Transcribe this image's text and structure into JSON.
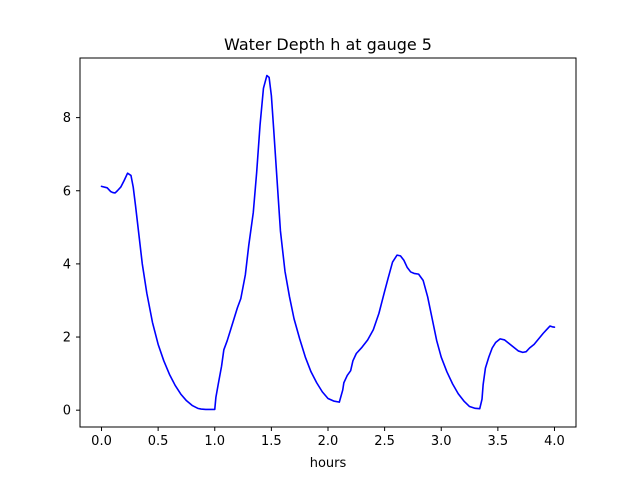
{
  "chart_data": {
    "type": "line",
    "title": "Water Depth h at gauge 5",
    "xlabel": "hours",
    "ylabel": "",
    "xlim": [
      -0.19,
      4.19
    ],
    "ylim": [
      -0.46,
      9.63
    ],
    "xticks": [
      0.0,
      0.5,
      1.0,
      1.5,
      2.0,
      2.5,
      3.0,
      3.5,
      4.0
    ],
    "xtick_labels": [
      "0.0",
      "0.5",
      "1.0",
      "1.5",
      "2.0",
      "2.5",
      "3.0",
      "3.5",
      "4.0"
    ],
    "yticks": [
      0,
      2,
      4,
      6,
      8
    ],
    "ytick_labels": [
      "0",
      "2",
      "4",
      "6",
      "8"
    ],
    "grid": false,
    "series": [
      {
        "color": "#0000ff",
        "x": [
          0.0,
          0.05,
          0.08,
          0.1,
          0.12,
          0.14,
          0.17,
          0.2,
          0.23,
          0.26,
          0.28,
          0.3,
          0.33,
          0.36,
          0.4,
          0.45,
          0.5,
          0.55,
          0.6,
          0.65,
          0.7,
          0.75,
          0.8,
          0.85,
          0.88,
          0.92,
          0.96,
          1.0,
          1.01,
          1.03,
          1.06,
          1.08,
          1.11,
          1.14,
          1.17,
          1.2,
          1.23,
          1.27,
          1.3,
          1.34,
          1.37,
          1.4,
          1.43,
          1.46,
          1.48,
          1.5,
          1.52,
          1.55,
          1.58,
          1.62,
          1.66,
          1.7,
          1.75,
          1.8,
          1.85,
          1.9,
          1.95,
          2.0,
          2.05,
          2.1,
          2.13,
          2.14,
          2.17,
          2.2,
          2.22,
          2.25,
          2.3,
          2.35,
          2.4,
          2.45,
          2.5,
          2.53,
          2.57,
          2.61,
          2.64,
          2.67,
          2.7,
          2.73,
          2.76,
          2.8,
          2.84,
          2.88,
          2.92,
          2.96,
          3.0,
          3.05,
          3.1,
          3.15,
          3.2,
          3.25,
          3.3,
          3.34,
          3.36,
          3.37,
          3.39,
          3.42,
          3.45,
          3.48,
          3.52,
          3.56,
          3.6,
          3.64,
          3.68,
          3.72,
          3.75,
          3.78,
          3.82,
          3.86,
          3.9,
          3.93,
          3.96,
          3.98,
          4.0
        ],
        "y": [
          6.12,
          6.08,
          5.98,
          5.95,
          5.94,
          6.0,
          6.1,
          6.28,
          6.48,
          6.42,
          6.1,
          5.6,
          4.8,
          4.0,
          3.2,
          2.4,
          1.8,
          1.35,
          0.98,
          0.68,
          0.44,
          0.26,
          0.13,
          0.05,
          0.03,
          0.02,
          0.02,
          0.02,
          0.35,
          0.7,
          1.2,
          1.65,
          1.9,
          2.2,
          2.5,
          2.8,
          3.05,
          3.7,
          4.5,
          5.4,
          6.5,
          7.8,
          8.8,
          9.15,
          9.1,
          8.6,
          7.7,
          6.3,
          4.9,
          3.8,
          3.1,
          2.5,
          1.95,
          1.45,
          1.05,
          0.75,
          0.5,
          0.32,
          0.25,
          0.22,
          0.55,
          0.75,
          0.95,
          1.08,
          1.35,
          1.55,
          1.72,
          1.92,
          2.2,
          2.65,
          3.25,
          3.6,
          4.05,
          4.24,
          4.22,
          4.1,
          3.9,
          3.78,
          3.74,
          3.72,
          3.55,
          3.1,
          2.5,
          1.9,
          1.45,
          1.05,
          0.72,
          0.45,
          0.25,
          0.1,
          0.05,
          0.04,
          0.3,
          0.7,
          1.15,
          1.45,
          1.7,
          1.85,
          1.95,
          1.92,
          1.82,
          1.72,
          1.62,
          1.58,
          1.6,
          1.7,
          1.8,
          1.95,
          2.1,
          2.2,
          2.3,
          2.28,
          2.27
        ]
      }
    ]
  }
}
